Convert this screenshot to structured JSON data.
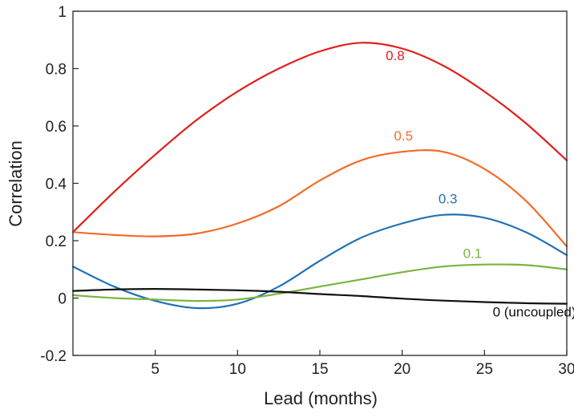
{
  "chart_data": {
    "type": "line",
    "title": "",
    "xlabel": "Lead (months)",
    "ylabel": "Correlation",
    "xlim": [
      0,
      30
    ],
    "ylim": [
      -0.2,
      1
    ],
    "xticks": [
      5,
      10,
      15,
      20,
      25,
      30
    ],
    "xtick_labels": [
      "5",
      "10",
      "15",
      "20",
      "25",
      "30"
    ],
    "yticks": [
      -0.2,
      0,
      0.2,
      0.4,
      0.6,
      0.8,
      1
    ],
    "ytick_labels": [
      "-0.2",
      "0",
      "0.2",
      "0.4",
      "0.6",
      "0.8",
      "1"
    ],
    "grid": false,
    "legend": "none (inline labels)",
    "x": [
      0,
      2.5,
      5,
      7.5,
      10,
      12.5,
      15,
      17.5,
      20,
      22.5,
      25,
      27.5,
      30
    ],
    "series": [
      {
        "name": "0.8",
        "label": "0.8",
        "color": "#e0201b",
        "label_at": [
          19,
          0.83
        ],
        "values": [
          0.23,
          0.37,
          0.5,
          0.62,
          0.72,
          0.8,
          0.86,
          0.89,
          0.87,
          0.81,
          0.72,
          0.61,
          0.48
        ]
      },
      {
        "name": "0.5",
        "label": "0.5",
        "color": "#f26b2c",
        "label_at": [
          19.5,
          0.55
        ],
        "values": [
          0.23,
          0.22,
          0.215,
          0.225,
          0.26,
          0.32,
          0.41,
          0.48,
          0.51,
          0.51,
          0.45,
          0.34,
          0.18
        ]
      },
      {
        "name": "0.3",
        "label": "0.3",
        "color": "#1f73b7",
        "label_at": [
          22.2,
          0.33
        ],
        "values": [
          0.11,
          0.04,
          -0.01,
          -0.035,
          -0.02,
          0.04,
          0.13,
          0.21,
          0.26,
          0.29,
          0.28,
          0.23,
          0.15
        ]
      },
      {
        "name": "0.1",
        "label": "0.1",
        "color": "#7ab440",
        "label_at": [
          23.7,
          0.14
        ],
        "values": [
          0.01,
          0.0,
          -0.005,
          -0.01,
          -0.005,
          0.015,
          0.04,
          0.065,
          0.09,
          0.11,
          0.117,
          0.115,
          0.1
        ]
      },
      {
        "name": "0 (uncoupled)",
        "label": "0 (uncoupled)",
        "color": "#111111",
        "label_at": [
          25.5,
          -0.065
        ],
        "values": [
          0.025,
          0.03,
          0.032,
          0.03,
          0.027,
          0.022,
          0.014,
          0.007,
          -0.002,
          -0.009,
          -0.014,
          -0.018,
          -0.02
        ]
      }
    ]
  }
}
